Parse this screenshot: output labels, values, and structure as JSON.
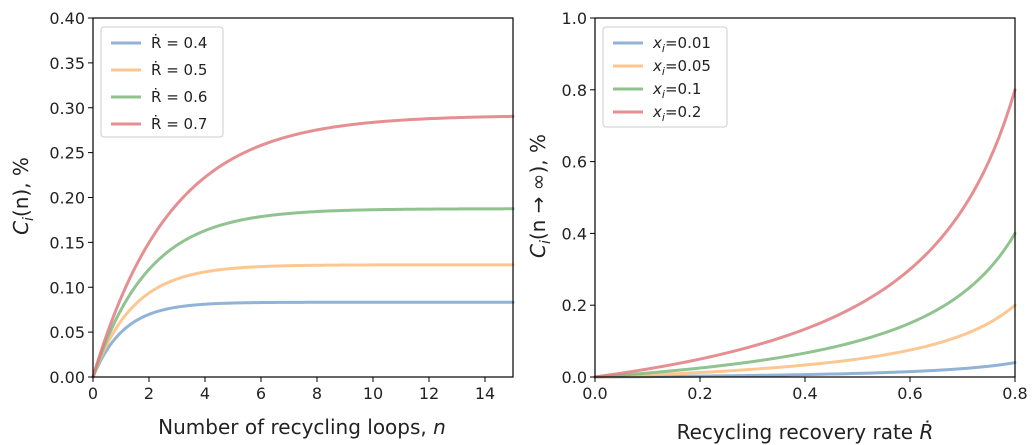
{
  "chart_data": [
    {
      "type": "line",
      "xlabel_main": "Number of recycling loops, ",
      "xlabel_var": "n",
      "ylabel_main": "C",
      "ylabel_sub": "i",
      "ylabel_rest": "(n), %",
      "xlim": [
        0,
        15
      ],
      "ylim": [
        0,
        0.4
      ],
      "xticks": [
        0,
        2,
        4,
        6,
        8,
        10,
        12,
        14
      ],
      "xtick_labels": [
        "0",
        "2",
        "4",
        "6",
        "8",
        "10",
        "12",
        "14"
      ],
      "yticks": [
        0,
        0.05,
        0.1,
        0.15,
        0.2,
        0.25,
        0.3,
        0.35,
        0.4
      ],
      "ytick_labels": [
        "0.00",
        "0.05",
        "0.10",
        "0.15",
        "0.20",
        "0.25",
        "0.30",
        "0.35",
        "0.40"
      ],
      "legend_position": "top-left",
      "series": [
        {
          "name": "Ṙ = 0.4",
          "color": "#7ea6ce",
          "steady": 0.0833,
          "rate": 0.91
        },
        {
          "name": "Ṙ = 0.5",
          "color": "#fbbd7c",
          "steady": 0.125,
          "rate": 0.69
        },
        {
          "name": "Ṙ = 0.6",
          "color": "#7cb87c",
          "steady": 0.1875,
          "rate": 0.51
        },
        {
          "name": "Ṙ = 0.7",
          "color": "#e27b7f",
          "steady": 0.2917,
          "rate": 0.36
        }
      ],
      "x": [
        0,
        0.5,
        1,
        1.5,
        2,
        2.5,
        3,
        3.5,
        4,
        5,
        6,
        7,
        8,
        9,
        10,
        11,
        12,
        13,
        14,
        15
      ]
    },
    {
      "type": "line",
      "xlabel_main": "Recycling recovery rate ",
      "xlabel_var": "Ṙ",
      "ylabel_main": "C",
      "ylabel_sub": "i",
      "ylabel_rest": "(n → ∞), %",
      "xlim": [
        0,
        0.8
      ],
      "ylim": [
        0,
        1.0
      ],
      "xticks": [
        0,
        0.2,
        0.4,
        0.6,
        0.8
      ],
      "xtick_labels": [
        "0.0",
        "0.2",
        "0.4",
        "0.6",
        "0.8"
      ],
      "yticks": [
        0,
        0.2,
        0.4,
        0.6,
        0.8,
        1.0
      ],
      "ytick_labels": [
        "0.0",
        "0.2",
        "0.4",
        "0.6",
        "0.8",
        "1.0"
      ],
      "legend_position": "top-left",
      "series": [
        {
          "name_var": "x",
          "name_sub": "i",
          "name_val": "=0.01",
          "color": "#7ea6ce",
          "xi": 0.01
        },
        {
          "name_var": "x",
          "name_sub": "i",
          "name_val": "=0.05",
          "color": "#fbbd7c",
          "xi": 0.05
        },
        {
          "name_var": "x",
          "name_sub": "i",
          "name_val": "=0.1",
          "color": "#7cb87c",
          "xi": 0.1
        },
        {
          "name_var": "x",
          "name_sub": "i",
          "name_val": "=0.2",
          "color": "#e27b7f",
          "xi": 0.2
        }
      ],
      "x": [
        0,
        0.05,
        0.1,
        0.15,
        0.2,
        0.25,
        0.3,
        0.35,
        0.4,
        0.45,
        0.5,
        0.55,
        0.6,
        0.65,
        0.7,
        0.75,
        0.8
      ]
    }
  ]
}
